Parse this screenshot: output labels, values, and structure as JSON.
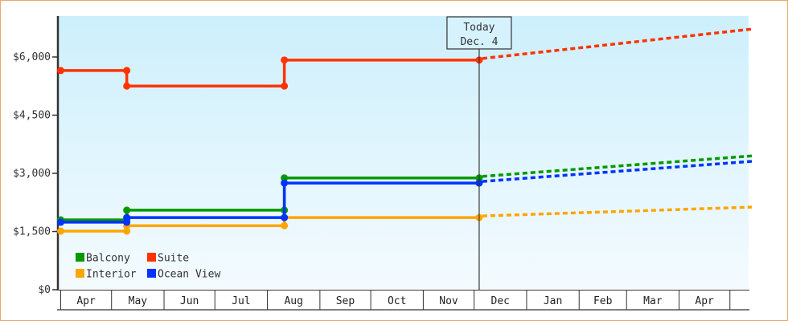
{
  "chart_data": {
    "type": "line",
    "title": "",
    "xlabel": "",
    "ylabel": "",
    "ylim": [
      0,
      7000
    ],
    "y_ticks": [
      "$0",
      "$1,500",
      "$3,000",
      "$4,500",
      "$6,000"
    ],
    "y_tick_values": [
      0,
      1500,
      3000,
      4500,
      6000
    ],
    "x_months": [
      "Apr",
      "May",
      "Jun",
      "Jul",
      "Aug",
      "Sep",
      "Oct",
      "Nov",
      "Dec",
      "Jan",
      "Feb",
      "Mar",
      "Apr"
    ],
    "x_range": [
      "Apr 1",
      "May 15 (next year)"
    ],
    "today_marker": {
      "line1": "Today",
      "line2": "Dec. 4",
      "date": "Dec 4"
    },
    "legend_position": "bottom-left",
    "grid": false,
    "background": [
      "#cdeffc",
      "#f4fbff"
    ],
    "series": [
      {
        "name": "Balcony",
        "color": "#009900",
        "history": [
          [
            "Apr 1",
            1800
          ],
          [
            "May 10",
            2050
          ],
          [
            "Aug 11",
            2880
          ],
          [
            "Dec 4",
            2880
          ]
        ],
        "forecast": [
          [
            "Dec 4",
            2880
          ],
          [
            "May 14",
            3450
          ]
        ]
      },
      {
        "name": "Suite",
        "color": "#ff3300",
        "history": [
          [
            "Apr 1",
            5650
          ],
          [
            "May 10",
            5250
          ],
          [
            "Aug 11",
            5920
          ],
          [
            "Dec 4",
            5920
          ]
        ],
        "forecast": [
          [
            "Dec 4",
            5920
          ],
          [
            "May 14",
            6720
          ]
        ]
      },
      {
        "name": "Interior",
        "color": "#ffa500",
        "history": [
          [
            "Apr 1",
            1510
          ],
          [
            "May 10",
            1650
          ],
          [
            "Aug 11",
            1860
          ],
          [
            "Dec 4",
            1860
          ]
        ],
        "forecast": [
          [
            "Dec 4",
            1860
          ],
          [
            "May 14",
            2130
          ]
        ]
      },
      {
        "name": "Ocean View",
        "color": "#0033ff",
        "history": [
          [
            "Apr 1",
            1740
          ],
          [
            "May 10",
            1860
          ],
          [
            "Aug 11",
            2750
          ],
          [
            "Dec 4",
            2750
          ]
        ],
        "forecast": [
          [
            "Dec 4",
            2750
          ],
          [
            "May 14",
            3310
          ]
        ]
      }
    ]
  }
}
